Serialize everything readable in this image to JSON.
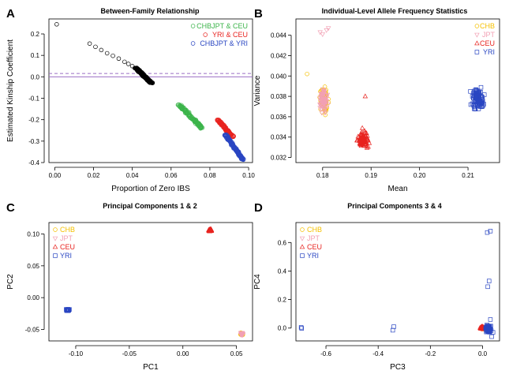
{
  "colors": {
    "black": "#000000",
    "green": "#3cb44b",
    "red": "#e8231f",
    "blue": "#2a46c2",
    "yellow": "#f5c000",
    "pink": "#f2a0b4",
    "reference_line": "#9b6fc4"
  },
  "chart_data": [
    {
      "id": "A",
      "type": "scatter",
      "letter": "A",
      "title": "Between-Family Relationship",
      "xlabel": "Proportion of Zero IBS",
      "ylabel": "Estimated Kinship Coefficient",
      "xlim": [
        -0.003,
        0.102
      ],
      "ylim": [
        -0.4,
        0.27
      ],
      "xticks": [
        0.0,
        0.02,
        0.04,
        0.06,
        0.08,
        0.1
      ],
      "xtick_labels": [
        "0.00",
        "0.02",
        "0.04",
        "0.06",
        "0.08",
        "0.10"
      ],
      "yticks": [
        -0.4,
        -0.3,
        -0.2,
        -0.1,
        0.0,
        0.1,
        0.2
      ],
      "ytick_labels": [
        "-0.4",
        "-0.3",
        "-0.2",
        "-0.1",
        "0.0",
        "0.1",
        "0.2"
      ],
      "grid": false,
      "legend_position": "top-right",
      "reference_lines": [
        {
          "y": 0.0,
          "style": "solid",
          "color": "#9b6fc4"
        },
        {
          "y": 0.0156,
          "style": "dashed",
          "color": "#9b6fc4"
        }
      ],
      "series": [
        {
          "name": "",
          "color": "#000000",
          "marker": "circle",
          "points": [
            [
              0.001,
              0.245
            ],
            [
              0.018,
              0.155
            ],
            [
              0.021,
              0.14
            ],
            [
              0.024,
              0.125
            ],
            [
              0.027,
              0.11
            ],
            [
              0.03,
              0.098
            ],
            [
              0.033,
              0.085
            ],
            [
              0.036,
              0.07
            ],
            [
              0.038,
              0.06
            ],
            [
              0.04,
              0.05
            ],
            [
              0.042,
              0.04
            ]
          ],
          "clusters": [
            {
              "x": [
                0.041,
                0.051
              ],
              "y": [
                -0.03,
                0.04
              ],
              "n": 220,
              "x_of_y": true,
              "x_at_ymax": 0.042,
              "x_at_ymin": 0.05
            }
          ]
        },
        {
          "name": "CHBJPT & CEU",
          "color": "#3cb44b",
          "marker": "circle",
          "clusters": [
            {
              "x": [
                0.063,
                0.077
              ],
              "y": [
                -0.24,
                -0.13
              ],
              "n": 130,
              "x_of_y": true,
              "x_at_ymax": 0.064,
              "x_at_ymin": 0.076
            }
          ]
        },
        {
          "name": "YRI & CEU",
          "color": "#e8231f",
          "marker": "circle",
          "clusters": [
            {
              "x": [
                0.083,
                0.093
              ],
              "y": [
                -0.28,
                -0.2
              ],
              "n": 110,
              "x_of_y": true,
              "x_at_ymax": 0.084,
              "x_at_ymin": 0.092
            }
          ]
        },
        {
          "name": "CHBJPT & YRI",
          "color": "#2a46c2",
          "marker": "circle",
          "clusters": [
            {
              "x": [
                0.088,
                0.098
              ],
              "y": [
                -0.385,
                -0.27
              ],
              "n": 170,
              "x_of_y": true,
              "x_at_ymax": 0.088,
              "x_at_ymin": 0.097
            }
          ]
        }
      ]
    },
    {
      "id": "B",
      "type": "scatter",
      "letter": "B",
      "title": "Individual-Level Allele Frequency Statistics",
      "xlabel": "Mean",
      "ylabel": "Variance",
      "xlim": [
        0.1745,
        0.2165
      ],
      "ylim": [
        0.0315,
        0.0456
      ],
      "xticks": [
        0.18,
        0.19,
        0.2,
        0.21
      ],
      "xtick_labels": [
        "0.18",
        "0.19",
        "0.20",
        "0.21"
      ],
      "yticks": [
        0.032,
        0.034,
        0.036,
        0.038,
        0.04,
        0.042,
        0.044
      ],
      "ytick_labels": [
        "0.032",
        "0.034",
        "0.036",
        "0.038",
        "0.040",
        "0.042",
        "0.044"
      ],
      "grid": false,
      "legend_position": "top-right",
      "series": [
        {
          "name": "CHB",
          "color": "#f5c000",
          "marker": "circle",
          "points": [
            [
              0.1768,
              0.0402
            ]
          ],
          "clusters": [
            {
              "x": [
                0.179,
                0.1815
              ],
              "y": [
                0.0358,
                0.0396
              ],
              "n": 80
            }
          ]
        },
        {
          "name": "JPT",
          "color": "#f2a0b4",
          "marker": "triangle-down",
          "points": [
            [
              0.1795,
              0.0443
            ],
            [
              0.18,
              0.0441
            ],
            [
              0.1808,
              0.0445
            ],
            [
              0.1812,
              0.0447
            ]
          ],
          "clusters": [
            {
              "x": [
                0.179,
                0.1815
              ],
              "y": [
                0.0358,
                0.0396
              ],
              "n": 70
            }
          ]
        },
        {
          "name": "CEU",
          "color": "#e8231f",
          "marker": "triangle-up",
          "points": [
            [
              0.1888,
              0.038
            ]
          ],
          "clusters": [
            {
              "x": [
                0.1865,
                0.1902
              ],
              "y": [
                0.0322,
                0.0352
              ],
              "n": 90
            }
          ]
        },
        {
          "name": "YRI",
          "color": "#2a46c2",
          "marker": "square",
          "clusters": [
            {
              "x": [
                0.21,
                0.214
              ],
              "y": [
                0.0362,
                0.0393
              ],
              "n": 110
            }
          ]
        }
      ]
    },
    {
      "id": "C",
      "type": "scatter",
      "letter": "C",
      "title": "Principal Components 1 & 2",
      "xlabel": "PC1",
      "ylabel": "PC2",
      "xlim": [
        -0.125,
        0.065
      ],
      "ylim": [
        -0.068,
        0.118
      ],
      "xticks": [
        -0.1,
        -0.05,
        0.0,
        0.05
      ],
      "xtick_labels": [
        "-0.10",
        "-0.05",
        "0.00",
        "0.05"
      ],
      "yticks": [
        -0.05,
        0.0,
        0.05,
        0.1
      ],
      "ytick_labels": [
        "-0.05",
        "0.00",
        "0.05",
        "0.10"
      ],
      "grid": false,
      "legend_position": "top-left",
      "series": [
        {
          "name": "CHB",
          "color": "#f5c000",
          "marker": "circle",
          "clusters": [
            {
              "x": [
                0.053,
                0.057
              ],
              "y": [
                -0.06,
                -0.054
              ],
              "n": 40
            }
          ]
        },
        {
          "name": "JPT",
          "color": "#f2a0b4",
          "marker": "triangle-down",
          "clusters": [
            {
              "x": [
                0.053,
                0.057
              ],
              "y": [
                -0.06,
                -0.054
              ],
              "n": 30
            }
          ]
        },
        {
          "name": "CEU",
          "color": "#e8231f",
          "marker": "triangle-up",
          "clusters": [
            {
              "x": [
                0.0235,
                0.0275
              ],
              "y": [
                0.103,
                0.109
              ],
              "n": 60
            }
          ]
        },
        {
          "name": "YRI",
          "color": "#2a46c2",
          "marker": "square",
          "clusters": [
            {
              "x": [
                -0.11,
                -0.105
              ],
              "y": [
                -0.0215,
                -0.0175
              ],
              "n": 60
            }
          ]
        }
      ]
    },
    {
      "id": "D",
      "type": "scatter",
      "letter": "D",
      "title": "Principal Components 3 & 4",
      "xlabel": "PC3",
      "ylabel": "PC4",
      "xlim": [
        -0.715,
        0.065
      ],
      "ylim": [
        -0.09,
        0.74
      ],
      "xticks": [
        -0.6,
        -0.4,
        -0.2,
        0.0
      ],
      "xtick_labels": [
        "-0.6",
        "-0.4",
        "-0.2",
        "0.0"
      ],
      "yticks": [
        0.0,
        0.2,
        0.4,
        0.6
      ],
      "ytick_labels": [
        "0.0",
        "0.2",
        "0.4",
        "0.6"
      ],
      "grid": false,
      "legend_position": "top-left",
      "series": [
        {
          "name": "CHB",
          "color": "#f5c000",
          "marker": "circle",
          "clusters": [
            {
              "x": [
                -0.008,
                0.008
              ],
              "y": [
                -0.012,
                0.012
              ],
              "n": 25
            }
          ]
        },
        {
          "name": "JPT",
          "color": "#f2a0b4",
          "marker": "triangle-down",
          "clusters": [
            {
              "x": [
                -0.008,
                0.008
              ],
              "y": [
                -0.012,
                0.012
              ],
              "n": 20
            }
          ]
        },
        {
          "name": "CEU",
          "color": "#e8231f",
          "marker": "triangle-up",
          "clusters": [
            {
              "x": [
                -0.012,
                0.01
              ],
              "y": [
                -0.012,
                0.015
              ],
              "n": 45
            }
          ]
        },
        {
          "name": "YRI",
          "color": "#2a46c2",
          "marker": "square",
          "points": [
            [
              -0.695,
              0.005
            ],
            [
              -0.693,
              -0.002
            ],
            [
              -0.344,
              -0.015
            ],
            [
              -0.34,
              0.01
            ],
            [
              0.018,
              0.67
            ],
            [
              0.03,
              0.68
            ],
            [
              0.025,
              0.33
            ],
            [
              0.02,
              0.29
            ],
            [
              0.03,
              0.06
            ],
            [
              0.035,
              -0.06
            ],
            [
              0.04,
              -0.03
            ]
          ],
          "clusters": [
            {
              "x": [
                0.005,
                0.04
              ],
              "y": [
                -0.05,
                0.04
              ],
              "n": 70
            }
          ]
        }
      ]
    }
  ]
}
